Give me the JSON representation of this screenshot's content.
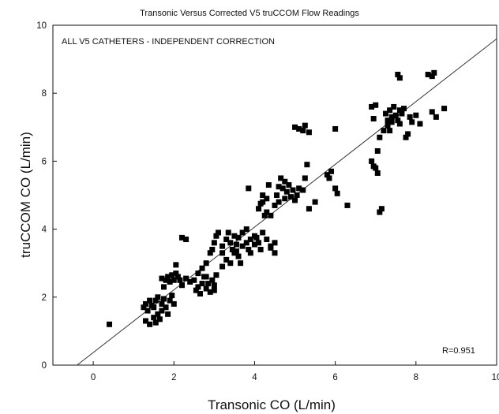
{
  "chart_data": {
    "type": "scatter",
    "title": "Transonic Versus Corrected V5 truCCOM Flow Readings",
    "annotation": "ALL V5 CATHETERS - INDEPENDENT CORRECTION",
    "r_label": "R=0.951",
    "xlabel": "Transonic CO (L/min)",
    "ylabel": "truCCOM CO (L/min)",
    "xlim": [
      -1,
      10
    ],
    "ylim": [
      0,
      10
    ],
    "x_ticks": [
      "0",
      "2",
      "4",
      "6",
      "8",
      "10"
    ],
    "y_ticks": [
      "0",
      "2",
      "4",
      "6",
      "8",
      "10"
    ],
    "grid": false,
    "regression_line": {
      "x": [
        -0.4,
        10
      ],
      "y": [
        0,
        9.6
      ]
    },
    "points": [
      [
        0.4,
        1.2
      ],
      [
        1.25,
        1.7
      ],
      [
        1.3,
        1.8
      ],
      [
        1.35,
        1.6
      ],
      [
        1.4,
        1.9
      ],
      [
        1.45,
        1.75
      ],
      [
        1.5,
        1.4
      ],
      [
        1.55,
        1.25
      ],
      [
        1.3,
        1.3
      ],
      [
        1.4,
        1.2
      ],
      [
        1.6,
        1.5
      ],
      [
        1.65,
        1.35
      ],
      [
        1.7,
        1.6
      ],
      [
        1.5,
        1.7
      ],
      [
        1.55,
        1.9
      ],
      [
        1.6,
        2.0
      ],
      [
        1.7,
        1.8
      ],
      [
        1.75,
        1.95
      ],
      [
        1.8,
        1.7
      ],
      [
        1.85,
        1.5
      ],
      [
        1.9,
        1.9
      ],
      [
        1.95,
        2.05
      ],
      [
        2.0,
        1.8
      ],
      [
        1.75,
        2.3
      ],
      [
        1.8,
        2.5
      ],
      [
        1.85,
        2.6
      ],
      [
        1.9,
        2.45
      ],
      [
        2.0,
        2.5
      ],
      [
        2.05,
        2.7
      ],
      [
        1.7,
        2.55
      ],
      [
        1.95,
        2.65
      ],
      [
        2.1,
        2.6
      ],
      [
        2.15,
        2.5
      ],
      [
        2.2,
        2.35
      ],
      [
        2.05,
        2.95
      ],
      [
        2.2,
        3.75
      ],
      [
        2.3,
        3.7
      ],
      [
        2.3,
        2.55
      ],
      [
        2.4,
        2.45
      ],
      [
        2.5,
        2.5
      ],
      [
        2.55,
        2.2
      ],
      [
        2.6,
        2.3
      ],
      [
        2.65,
        2.1
      ],
      [
        2.7,
        2.4
      ],
      [
        2.75,
        2.6
      ],
      [
        2.8,
        2.25
      ],
      [
        2.85,
        2.4
      ],
      [
        2.9,
        2.15
      ],
      [
        2.95,
        2.5
      ],
      [
        3.0,
        2.35
      ],
      [
        2.6,
        2.7
      ],
      [
        2.7,
        2.85
      ],
      [
        2.8,
        2.6
      ],
      [
        3.0,
        2.2
      ],
      [
        3.05,
        2.65
      ],
      [
        2.8,
        3.0
      ],
      [
        2.9,
        3.3
      ],
      [
        2.95,
        3.4
      ],
      [
        3.0,
        3.6
      ],
      [
        3.05,
        3.8
      ],
      [
        3.1,
        3.9
      ],
      [
        3.2,
        3.5
      ],
      [
        3.2,
        3.3
      ],
      [
        3.3,
        3.1
      ],
      [
        3.3,
        3.7
      ],
      [
        3.35,
        3.9
      ],
      [
        3.4,
        3.6
      ],
      [
        3.45,
        3.4
      ],
      [
        3.5,
        3.8
      ],
      [
        3.5,
        3.3
      ],
      [
        3.55,
        3.55
      ],
      [
        3.6,
        3.75
      ],
      [
        3.6,
        3.2
      ],
      [
        3.65,
        3.0
      ],
      [
        3.7,
        3.5
      ],
      [
        3.7,
        3.9
      ],
      [
        3.8,
        3.6
      ],
      [
        3.8,
        4.0
      ],
      [
        3.85,
        3.4
      ],
      [
        3.9,
        3.7
      ],
      [
        3.9,
        3.3
      ],
      [
        4.0,
        3.8
      ],
      [
        4.0,
        3.55
      ],
      [
        4.05,
        3.75
      ],
      [
        4.1,
        3.6
      ],
      [
        4.15,
        3.4
      ],
      [
        4.2,
        3.9
      ],
      [
        4.3,
        3.7
      ],
      [
        4.4,
        3.5
      ],
      [
        4.4,
        3.45
      ],
      [
        4.5,
        3.6
      ],
      [
        4.5,
        3.3
      ],
      [
        3.2,
        2.9
      ],
      [
        3.4,
        3.0
      ],
      [
        3.85,
        5.2
      ],
      [
        4.1,
        4.6
      ],
      [
        4.15,
        4.75
      ],
      [
        4.2,
        5.0
      ],
      [
        4.25,
        4.4
      ],
      [
        4.3,
        4.9
      ],
      [
        4.35,
        5.3
      ],
      [
        4.3,
        4.5
      ],
      [
        4.4,
        4.4
      ],
      [
        4.5,
        4.7
      ],
      [
        4.55,
        5.0
      ],
      [
        4.6,
        4.8
      ],
      [
        4.65,
        5.5
      ],
      [
        4.7,
        5.2
      ],
      [
        4.75,
        5.4
      ],
      [
        4.8,
        5.1
      ],
      [
        4.85,
        5.3
      ],
      [
        4.9,
        4.95
      ],
      [
        4.95,
        5.15
      ],
      [
        5.0,
        4.85
      ],
      [
        5.05,
        5.0
      ],
      [
        5.1,
        5.2
      ],
      [
        5.2,
        5.15
      ],
      [
        5.25,
        5.5
      ],
      [
        5.3,
        5.9
      ],
      [
        5.5,
        4.8
      ],
      [
        5.35,
        4.6
      ],
      [
        5.0,
        7.0
      ],
      [
        5.1,
        6.95
      ],
      [
        5.2,
        6.9
      ],
      [
        5.25,
        7.05
      ],
      [
        5.35,
        6.85
      ],
      [
        5.8,
        5.6
      ],
      [
        5.85,
        5.5
      ],
      [
        5.9,
        5.7
      ],
      [
        6.0,
        5.2
      ],
      [
        6.05,
        5.05
      ],
      [
        6.0,
        6.95
      ],
      [
        6.3,
        4.7
      ],
      [
        6.9,
        7.6
      ],
      [
        6.95,
        7.25
      ],
      [
        7.0,
        7.65
      ],
      [
        6.9,
        6.0
      ],
      [
        6.95,
        5.85
      ],
      [
        7.0,
        5.8
      ],
      [
        7.05,
        5.65
      ],
      [
        7.05,
        6.3
      ],
      [
        7.1,
        6.7
      ],
      [
        7.1,
        4.5
      ],
      [
        7.15,
        4.6
      ],
      [
        7.2,
        6.9
      ],
      [
        7.25,
        7.4
      ],
      [
        7.3,
        7.05
      ],
      [
        7.35,
        7.5
      ],
      [
        7.4,
        7.3
      ],
      [
        7.45,
        7.6
      ],
      [
        7.5,
        7.35
      ],
      [
        7.55,
        7.2
      ],
      [
        7.6,
        7.5
      ],
      [
        7.65,
        7.4
      ],
      [
        7.7,
        7.55
      ],
      [
        7.75,
        6.7
      ],
      [
        7.8,
        6.8
      ],
      [
        7.85,
        7.3
      ],
      [
        7.9,
        7.15
      ],
      [
        8.0,
        7.35
      ],
      [
        8.1,
        7.1
      ],
      [
        7.55,
        8.55
      ],
      [
        7.6,
        8.45
      ],
      [
        8.3,
        8.55
      ],
      [
        8.4,
        8.5
      ],
      [
        8.45,
        8.6
      ],
      [
        8.5,
        7.3
      ],
      [
        8.4,
        7.45
      ],
      [
        8.7,
        7.55
      ],
      [
        7.3,
        7.2
      ],
      [
        7.35,
        6.9
      ],
      [
        7.4,
        7.15
      ],
      [
        7.6,
        7.1
      ],
      [
        4.2,
        4.8
      ],
      [
        4.6,
        5.25
      ],
      [
        4.75,
        4.9
      ],
      [
        3.55,
        3.35
      ]
    ]
  }
}
